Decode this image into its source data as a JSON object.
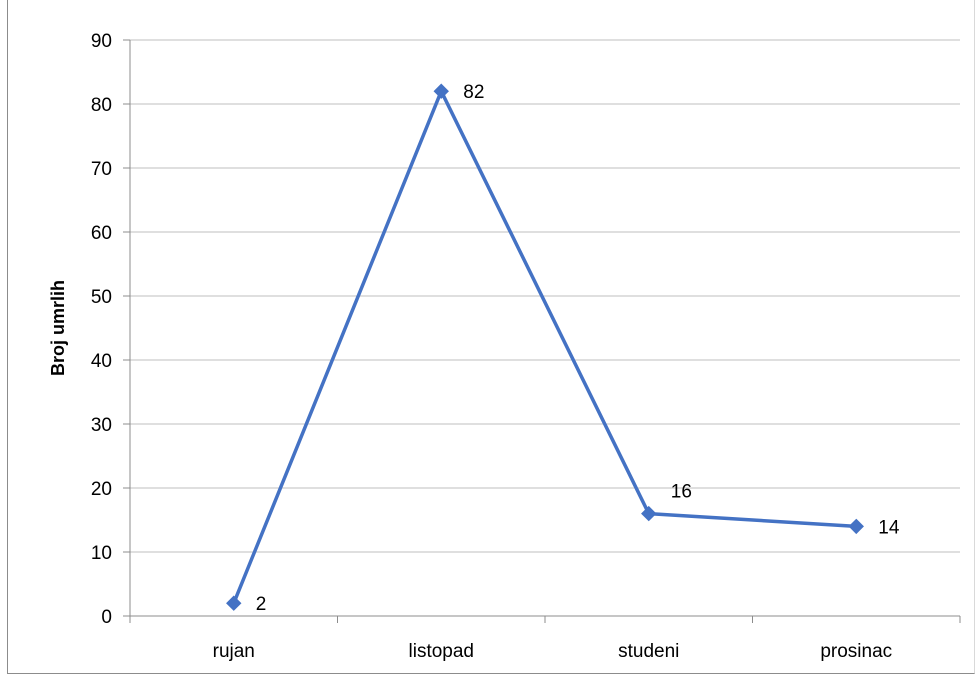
{
  "chart_data": {
    "type": "line",
    "title": "",
    "xlabel": "",
    "ylabel": "Broj umrlih",
    "categories": [
      "rujan",
      "listopad",
      "studeni",
      "prosinac"
    ],
    "series": [
      {
        "values": [
          2,
          82,
          16,
          14
        ],
        "color": "#4472C4",
        "marker": "diamond",
        "data_labels": [
          "2",
          "82",
          "16",
          "14"
        ]
      }
    ],
    "ylim": [
      0,
      90
    ],
    "yticks": [
      0,
      10,
      20,
      30,
      40,
      50,
      60,
      70,
      80,
      90
    ],
    "grid": "horizontal",
    "legend": "none",
    "colors": {
      "gridline": "#bfbfbf",
      "axis": "#8c8c8c",
      "series": "#4472C4"
    }
  }
}
